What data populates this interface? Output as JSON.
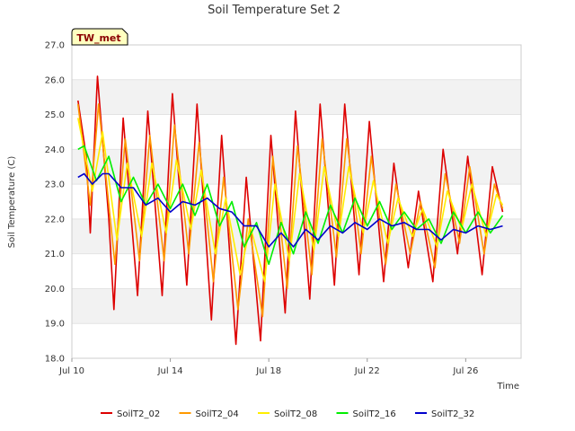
{
  "chart_data": {
    "type": "line",
    "title": "Soil Temperature Set 2",
    "xlabel": "Time",
    "ylabel": "Soil Temperature (C)",
    "badge": "TW_met",
    "xlim": [
      "2024-07-10",
      "2024-07-28T06:00"
    ],
    "ylim": [
      18.0,
      27.0
    ],
    "yticks": [
      18.0,
      19.0,
      20.0,
      21.0,
      22.0,
      23.0,
      24.0,
      25.0,
      26.0,
      27.0
    ],
    "xticks": [
      {
        "date": "2024-07-10",
        "label": "Jul 10"
      },
      {
        "date": "2024-07-14",
        "label": "Jul 14"
      },
      {
        "date": "2024-07-18",
        "label": "Jul 18"
      },
      {
        "date": "2024-07-22",
        "label": "Jul 22"
      },
      {
        "date": "2024-07-26",
        "label": "Jul 26"
      }
    ],
    "grid": "horizontal bands",
    "legend_position": "bottom",
    "series": [
      {
        "name": "SoilT2_02",
        "color": "#dd0000",
        "points": [
          [
            "2024-07-10T06:00",
            25.4
          ],
          [
            "2024-07-10T14:00",
            23.8
          ],
          [
            "2024-07-10T18:00",
            21.6
          ],
          [
            "2024-07-11T00:00",
            25.5
          ],
          [
            "2024-07-11T01:00",
            26.1
          ],
          [
            "2024-07-11T12:00",
            22.0
          ],
          [
            "2024-07-11T17:00",
            19.4
          ],
          [
            "2024-07-12T02:00",
            24.9
          ],
          [
            "2024-07-12T16:00",
            19.8
          ],
          [
            "2024-07-13T02:00",
            25.1
          ],
          [
            "2024-07-13T16:00",
            19.8
          ],
          [
            "2024-07-14T02:00",
            25.6
          ],
          [
            "2024-07-14T16:00",
            20.1
          ],
          [
            "2024-07-15T02:00",
            25.3
          ],
          [
            "2024-07-15T16:00",
            19.1
          ],
          [
            "2024-07-16T02:00",
            24.4
          ],
          [
            "2024-07-16T16:00",
            18.4
          ],
          [
            "2024-07-17T02:00",
            23.2
          ],
          [
            "2024-07-17T16:00",
            18.5
          ],
          [
            "2024-07-18T02:00",
            24.4
          ],
          [
            "2024-07-18T16:00",
            19.3
          ],
          [
            "2024-07-19T02:00",
            25.1
          ],
          [
            "2024-07-19T16:00",
            19.7
          ],
          [
            "2024-07-20T02:00",
            25.3
          ],
          [
            "2024-07-20T16:00",
            20.1
          ],
          [
            "2024-07-21T02:00",
            25.3
          ],
          [
            "2024-07-21T16:00",
            20.4
          ],
          [
            "2024-07-22T02:00",
            24.8
          ],
          [
            "2024-07-22T16:00",
            20.2
          ],
          [
            "2024-07-23T02:00",
            23.6
          ],
          [
            "2024-07-23T16:00",
            20.6
          ],
          [
            "2024-07-24T02:00",
            22.8
          ],
          [
            "2024-07-24T16:00",
            20.2
          ],
          [
            "2024-07-25T02:00",
            24.0
          ],
          [
            "2024-07-25T16:00",
            21.0
          ],
          [
            "2024-07-26T02:00",
            23.8
          ],
          [
            "2024-07-26T16:00",
            20.4
          ],
          [
            "2024-07-27T02:00",
            23.5
          ],
          [
            "2024-07-27T12:00",
            22.2
          ]
        ]
      },
      {
        "name": "SoilT2_04",
        "color": "#ff9900",
        "points": [
          [
            "2024-07-10T06:00",
            25.3
          ],
          [
            "2024-07-10T18:00",
            22.4
          ],
          [
            "2024-07-11T02:00",
            25.3
          ],
          [
            "2024-07-11T18:00",
            20.7
          ],
          [
            "2024-07-12T04:00",
            24.3
          ],
          [
            "2024-07-12T18:00",
            20.8
          ],
          [
            "2024-07-13T04:00",
            24.4
          ],
          [
            "2024-07-13T18:00",
            20.8
          ],
          [
            "2024-07-14T04:00",
            24.7
          ],
          [
            "2024-07-14T18:00",
            21.0
          ],
          [
            "2024-07-15T04:00",
            24.2
          ],
          [
            "2024-07-15T18:00",
            20.2
          ],
          [
            "2024-07-16T04:00",
            23.2
          ],
          [
            "2024-07-16T18:00",
            19.4
          ],
          [
            "2024-07-17T04:00",
            22.0
          ],
          [
            "2024-07-17T18:00",
            19.2
          ],
          [
            "2024-07-18T04:00",
            23.8
          ],
          [
            "2024-07-18T18:00",
            20.0
          ],
          [
            "2024-07-19T04:00",
            24.1
          ],
          [
            "2024-07-19T18:00",
            20.4
          ],
          [
            "2024-07-20T04:00",
            24.3
          ],
          [
            "2024-07-20T18:00",
            20.9
          ],
          [
            "2024-07-21T04:00",
            24.3
          ],
          [
            "2024-07-21T18:00",
            21.0
          ],
          [
            "2024-07-22T04:00",
            23.8
          ],
          [
            "2024-07-22T18:00",
            20.7
          ],
          [
            "2024-07-23T04:00",
            23.0
          ],
          [
            "2024-07-23T18:00",
            21.0
          ],
          [
            "2024-07-24T04:00",
            22.5
          ],
          [
            "2024-07-24T18:00",
            20.6
          ],
          [
            "2024-07-25T04:00",
            23.3
          ],
          [
            "2024-07-25T18:00",
            21.3
          ],
          [
            "2024-07-26T04:00",
            23.5
          ],
          [
            "2024-07-26T18:00",
            21.0
          ],
          [
            "2024-07-27T04:00",
            23.0
          ],
          [
            "2024-07-27T12:00",
            22.3
          ]
        ]
      },
      {
        "name": "SoilT2_08",
        "color": "#ffee00",
        "points": [
          [
            "2024-07-10T06:00",
            24.9
          ],
          [
            "2024-07-10T20:00",
            22.8
          ],
          [
            "2024-07-11T06:00",
            24.5
          ],
          [
            "2024-07-11T20:00",
            21.4
          ],
          [
            "2024-07-12T06:00",
            23.6
          ],
          [
            "2024-07-12T20:00",
            21.5
          ],
          [
            "2024-07-13T06:00",
            23.6
          ],
          [
            "2024-07-13T20:00",
            21.6
          ],
          [
            "2024-07-14T06:00",
            23.7
          ],
          [
            "2024-07-14T20:00",
            21.7
          ],
          [
            "2024-07-15T06:00",
            23.4
          ],
          [
            "2024-07-15T20:00",
            21.0
          ],
          [
            "2024-07-16T06:00",
            22.6
          ],
          [
            "2024-07-16T20:00",
            20.4
          ],
          [
            "2024-07-17T06:00",
            21.8
          ],
          [
            "2024-07-17T20:00",
            20.2
          ],
          [
            "2024-07-18T06:00",
            23.0
          ],
          [
            "2024-07-18T20:00",
            20.8
          ],
          [
            "2024-07-19T06:00",
            23.3
          ],
          [
            "2024-07-19T20:00",
            21.1
          ],
          [
            "2024-07-20T06:00",
            23.5
          ],
          [
            "2024-07-20T20:00",
            21.5
          ],
          [
            "2024-07-21T06:00",
            23.5
          ],
          [
            "2024-07-21T20:00",
            21.6
          ],
          [
            "2024-07-22T06:00",
            23.1
          ],
          [
            "2024-07-22T20:00",
            21.3
          ],
          [
            "2024-07-23T06:00",
            22.6
          ],
          [
            "2024-07-23T20:00",
            21.5
          ],
          [
            "2024-07-24T06:00",
            22.3
          ],
          [
            "2024-07-24T20:00",
            21.2
          ],
          [
            "2024-07-25T06:00",
            22.8
          ],
          [
            "2024-07-25T20:00",
            21.7
          ],
          [
            "2024-07-26T06:00",
            23.0
          ],
          [
            "2024-07-26T20:00",
            21.5
          ],
          [
            "2024-07-27T06:00",
            22.7
          ],
          [
            "2024-07-27T12:00",
            22.4
          ]
        ]
      },
      {
        "name": "SoilT2_16",
        "color": "#00ee00",
        "points": [
          [
            "2024-07-10T06:00",
            24.0
          ],
          [
            "2024-07-10T12:00",
            24.1
          ],
          [
            "2024-07-11T00:00",
            23.1
          ],
          [
            "2024-07-11T12:00",
            23.8
          ],
          [
            "2024-07-12T00:00",
            22.5
          ],
          [
            "2024-07-12T12:00",
            23.2
          ],
          [
            "2024-07-13T00:00",
            22.4
          ],
          [
            "2024-07-13T12:00",
            23.0
          ],
          [
            "2024-07-14T00:00",
            22.3
          ],
          [
            "2024-07-14T12:00",
            23.0
          ],
          [
            "2024-07-15T00:00",
            22.1
          ],
          [
            "2024-07-15T12:00",
            23.0
          ],
          [
            "2024-07-16T00:00",
            21.8
          ],
          [
            "2024-07-16T12:00",
            22.5
          ],
          [
            "2024-07-17T00:00",
            21.2
          ],
          [
            "2024-07-17T12:00",
            21.9
          ],
          [
            "2024-07-18T00:00",
            20.7
          ],
          [
            "2024-07-18T12:00",
            21.9
          ],
          [
            "2024-07-19T00:00",
            21.0
          ],
          [
            "2024-07-19T12:00",
            22.2
          ],
          [
            "2024-07-20T00:00",
            21.3
          ],
          [
            "2024-07-20T12:00",
            22.4
          ],
          [
            "2024-07-21T00:00",
            21.6
          ],
          [
            "2024-07-21T12:00",
            22.6
          ],
          [
            "2024-07-22T00:00",
            21.8
          ],
          [
            "2024-07-22T12:00",
            22.5
          ],
          [
            "2024-07-23T00:00",
            21.7
          ],
          [
            "2024-07-23T12:00",
            22.2
          ],
          [
            "2024-07-24T00:00",
            21.7
          ],
          [
            "2024-07-24T12:00",
            22.0
          ],
          [
            "2024-07-25T00:00",
            21.3
          ],
          [
            "2024-07-25T12:00",
            22.2
          ],
          [
            "2024-07-26T00:00",
            21.6
          ],
          [
            "2024-07-26T12:00",
            22.2
          ],
          [
            "2024-07-27T00:00",
            21.6
          ],
          [
            "2024-07-27T12:00",
            22.1
          ]
        ]
      },
      {
        "name": "SoilT2_32",
        "color": "#0000cc",
        "points": [
          [
            "2024-07-10T06:00",
            23.2
          ],
          [
            "2024-07-10T12:00",
            23.3
          ],
          [
            "2024-07-10T20:00",
            23.0
          ],
          [
            "2024-07-11T06:00",
            23.3
          ],
          [
            "2024-07-11T12:00",
            23.3
          ],
          [
            "2024-07-12T00:00",
            22.9
          ],
          [
            "2024-07-12T12:00",
            22.9
          ],
          [
            "2024-07-13T00:00",
            22.4
          ],
          [
            "2024-07-13T12:00",
            22.6
          ],
          [
            "2024-07-14T00:00",
            22.2
          ],
          [
            "2024-07-14T12:00",
            22.5
          ],
          [
            "2024-07-15T00:00",
            22.4
          ],
          [
            "2024-07-15T12:00",
            22.6
          ],
          [
            "2024-07-16T00:00",
            22.3
          ],
          [
            "2024-07-16T12:00",
            22.2
          ],
          [
            "2024-07-17T00:00",
            21.8
          ],
          [
            "2024-07-17T12:00",
            21.8
          ],
          [
            "2024-07-18T00:00",
            21.2
          ],
          [
            "2024-07-18T12:00",
            21.6
          ],
          [
            "2024-07-19T00:00",
            21.2
          ],
          [
            "2024-07-19T12:00",
            21.7
          ],
          [
            "2024-07-20T00:00",
            21.4
          ],
          [
            "2024-07-20T12:00",
            21.8
          ],
          [
            "2024-07-21T00:00",
            21.6
          ],
          [
            "2024-07-21T12:00",
            21.9
          ],
          [
            "2024-07-22T00:00",
            21.7
          ],
          [
            "2024-07-22T12:00",
            22.0
          ],
          [
            "2024-07-23T00:00",
            21.8
          ],
          [
            "2024-07-23T12:00",
            21.9
          ],
          [
            "2024-07-24T00:00",
            21.7
          ],
          [
            "2024-07-24T12:00",
            21.7
          ],
          [
            "2024-07-25T00:00",
            21.4
          ],
          [
            "2024-07-25T12:00",
            21.7
          ],
          [
            "2024-07-26T00:00",
            21.6
          ],
          [
            "2024-07-26T12:00",
            21.8
          ],
          [
            "2024-07-27T00:00",
            21.7
          ],
          [
            "2024-07-27T12:00",
            21.8
          ]
        ]
      }
    ]
  }
}
